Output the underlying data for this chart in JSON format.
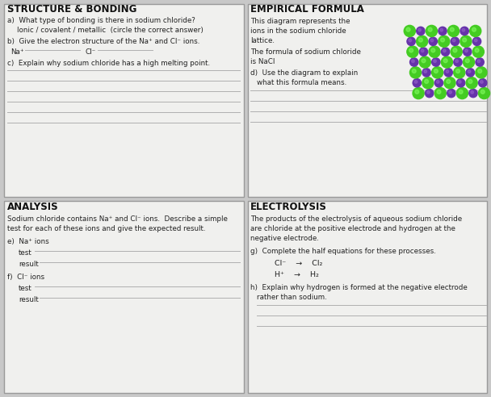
{
  "bg_color": "#c8c8c8",
  "cell_bg": "#f0f0ee",
  "line_color": "#b0b0b0",
  "border_color": "#999999",
  "title_color": "#111111",
  "text_color": "#222222",
  "sections": {
    "top_left_title": "STRUCTURE & BONDING",
    "top_right_title": "EMPIRICAL FORMULA",
    "bottom_left_title": "ANALYSIS",
    "bottom_right_title": "ELECTROLYSIS"
  },
  "figsize": [
    6.08,
    4.92
  ],
  "dpi": 100,
  "crystal_green": "#44cc22",
  "crystal_purple": "#6633aa"
}
